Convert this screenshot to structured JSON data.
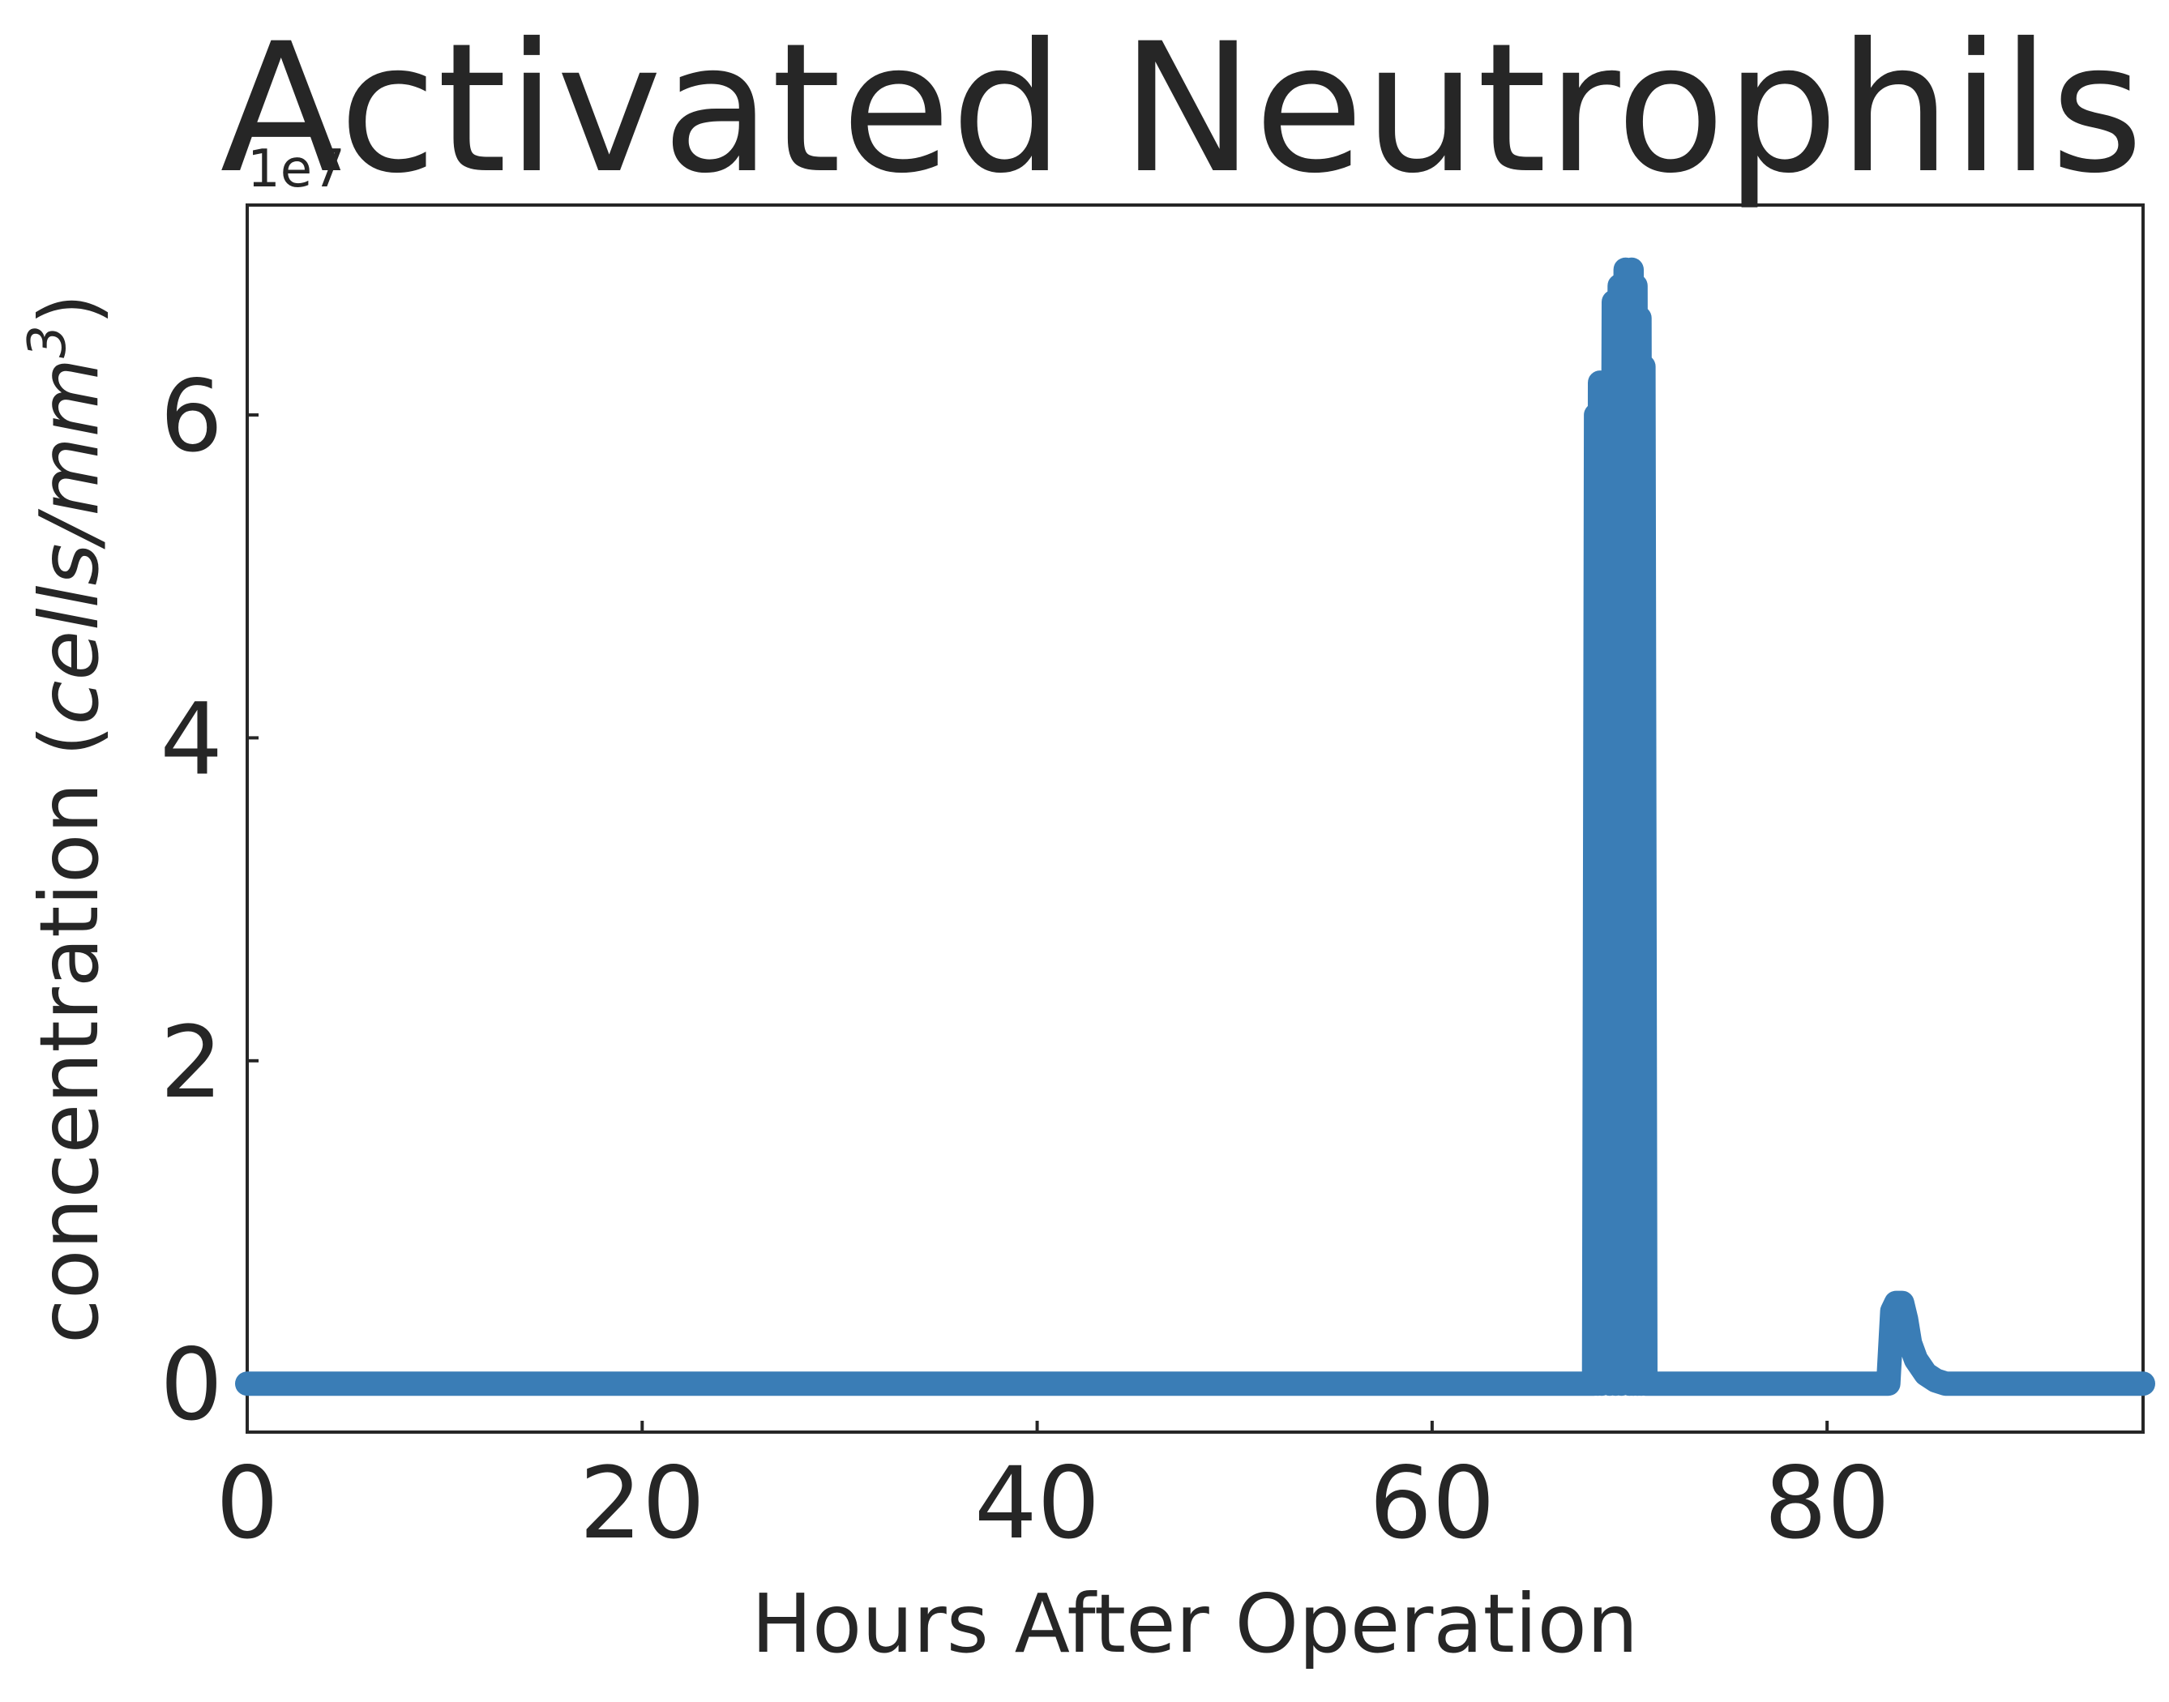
{
  "chart_data": {
    "type": "line",
    "title": "Activated Neutrophils",
    "xlabel": "Hours After Operation",
    "ylabel": {
      "prefix": "concentration (",
      "unit_italic": "cells/mm",
      "superscript": "3",
      "suffix": ")"
    },
    "y_offset_text": "1e7",
    "xlim": [
      0,
      96
    ],
    "ylim": [
      -0.3,
      7.3
    ],
    "y_scale_factor": 10000000,
    "x_ticks": [
      0,
      20,
      40,
      60,
      80
    ],
    "x_tick_labels": [
      "0",
      "20",
      "40",
      "60",
      "80"
    ],
    "y_ticks": [
      0,
      2,
      4,
      6
    ],
    "y_tick_labels": [
      "0",
      "2",
      "4",
      "6"
    ],
    "grid": false,
    "series": [
      {
        "color": "#3a7db6",
        "x": [
          0,
          68.2,
          68.3,
          68.4,
          68.5,
          68.6,
          68.8,
          69.0,
          69.2,
          69.3,
          69.5,
          69.6,
          69.8,
          70.0,
          70.1,
          70.2,
          70.3,
          70.4,
          70.5,
          70.6,
          70.7,
          70.8,
          70.9,
          83.0,
          83.1,
          83.3,
          83.5,
          83.8,
          84.0,
          84.2,
          84.5,
          85.0,
          85.5,
          86.0,
          96
        ],
        "y": [
          0,
          0,
          6.0,
          0,
          6.2,
          0,
          6.2,
          0,
          6.7,
          0,
          6.8,
          0,
          6.9,
          0,
          6.9,
          0,
          6.8,
          0,
          6.6,
          0,
          6.3,
          0,
          0,
          0,
          0,
          0.45,
          0.5,
          0.5,
          0.4,
          0.25,
          0.15,
          0.06,
          0.02,
          0,
          0
        ]
      }
    ]
  }
}
